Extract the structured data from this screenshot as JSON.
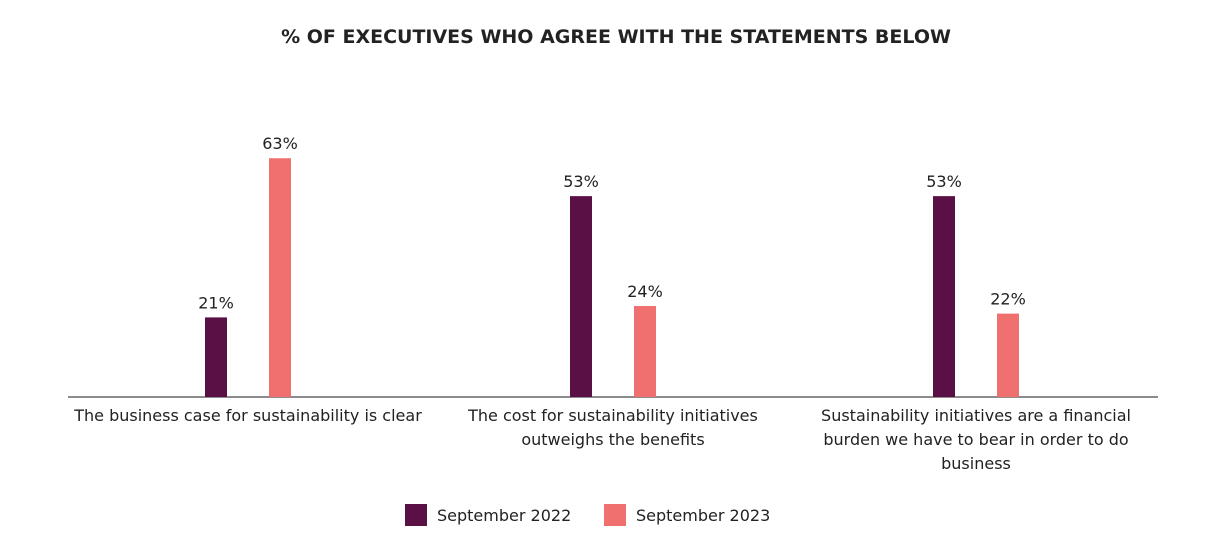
{
  "chart_data": {
    "type": "bar",
    "title": "% OF EXECUTIVES WHO AGREE WITH THE STATEMENTS BELOW",
    "categories": [
      "The business case for sustainability is clear",
      "The cost for sustainability initiatives outweighs the benefits",
      "Sustainability initiatives are a financial burden we have to bear in order to do business"
    ],
    "series": [
      {
        "name": "September 2022",
        "color": "#5a0f45",
        "values": [
          21,
          53,
          53
        ],
        "value_labels": [
          "21%",
          "53%",
          "53%"
        ]
      },
      {
        "name": "September 2023",
        "color": "#f07070",
        "values": [
          63,
          24,
          22
        ],
        "value_labels": [
          "63%",
          "24%",
          "22%"
        ]
      }
    ],
    "legend": "bottom"
  }
}
